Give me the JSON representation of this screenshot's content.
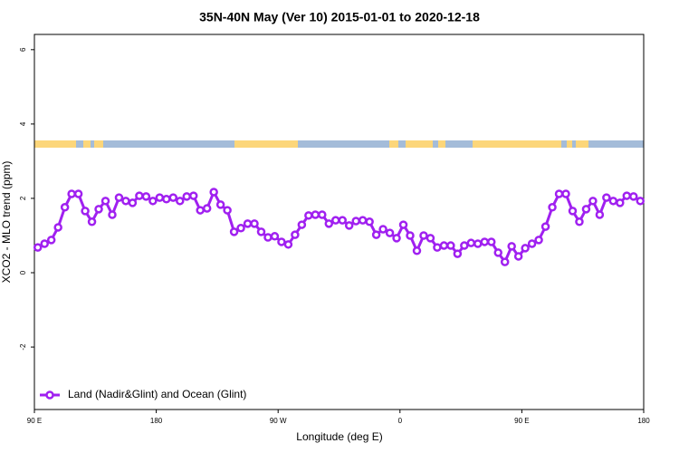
{
  "chart_data": {
    "type": "line",
    "title": "35N-40N May (Ver 10)   2015-01-01 to 2020-12-18",
    "x_label": "Longitude (deg E)",
    "y_label": "XCO2 - MLO trend (ppm)",
    "xlim": [
      90,
      540
    ],
    "ylim": [
      -3.68,
      6.41
    ],
    "xticks": [
      {
        "value": 90,
        "label": "90 E"
      },
      {
        "value": 180,
        "label": "180"
      },
      {
        "value": 270,
        "label": "90 W"
      },
      {
        "value": 360,
        "label": "0"
      },
      {
        "value": 450,
        "label": "90 E"
      },
      {
        "value": 540,
        "label": "180"
      }
    ],
    "yticks": [
      -2,
      0,
      2,
      4,
      6
    ],
    "legend": "bottom-left",
    "x": [
      92.5,
      97.5,
      102.5,
      107.5,
      112.5,
      117.5,
      122.5,
      127.5,
      132.5,
      137.5,
      142.5,
      147.5,
      152.5,
      157.5,
      162.5,
      167.5,
      172.5,
      177.5,
      182.5,
      187.5,
      192.5,
      197.5,
      202.5,
      207.5,
      212.5,
      217.5,
      222.5,
      227.5,
      232.5,
      237.5,
      242.5,
      247.5,
      252.5,
      257.5,
      262.5,
      267.5,
      272.5,
      277.5,
      282.5,
      287.5,
      292.5,
      297.5,
      302.5,
      307.5,
      312.5,
      317.5,
      322.5,
      327.5,
      332.5,
      337.5,
      342.5,
      347.5,
      352.5,
      357.5,
      362.5,
      367.5,
      372.5,
      377.5,
      382.5,
      387.5,
      392.5,
      397.5,
      402.5,
      407.5,
      412.5,
      417.5,
      422.5,
      427.5,
      432.5,
      437.5,
      442.5,
      447.5,
      452.5,
      457.5,
      462.5,
      467.5,
      472.5,
      477.5,
      482.5,
      487.5,
      492.5,
      497.5,
      502.5,
      507.5,
      512.5,
      517.5,
      522.5,
      527.5,
      532.5,
      537.5
    ],
    "series": [
      {
        "name": "Land (Nadir&Glint) and Ocean (Glint)",
        "color": "#a020f0",
        "values": [
          0.68,
          0.78,
          0.88,
          1.22,
          1.76,
          2.12,
          2.12,
          1.66,
          1.37,
          1.71,
          1.93,
          1.56,
          2.02,
          1.93,
          1.88,
          2.07,
          2.05,
          1.93,
          2.02,
          1.98,
          2.02,
          1.93,
          2.05,
          2.07,
          1.68,
          1.73,
          2.17,
          1.83,
          1.68,
          1.1,
          1.2,
          1.32,
          1.32,
          1.1,
          0.95,
          0.98,
          0.83,
          0.76,
          1.02,
          1.29,
          1.54,
          1.56,
          1.56,
          1.32,
          1.41,
          1.41,
          1.27,
          1.39,
          1.41,
          1.37,
          1.02,
          1.17,
          1.07,
          0.93,
          1.29,
          1.0,
          0.59,
          1.0,
          0.93,
          0.68,
          0.73,
          0.73,
          0.51,
          0.73,
          0.8,
          0.78,
          0.83,
          0.83,
          0.54,
          0.29,
          0.71,
          0.44,
          0.66,
          0.78,
          0.88,
          1.24,
          1.76,
          2.12,
          2.12,
          1.66,
          1.37,
          1.71,
          1.93,
          1.56,
          2.02,
          1.93,
          1.88,
          2.07,
          2.05,
          1.93
        ]
      }
    ]
  }
}
